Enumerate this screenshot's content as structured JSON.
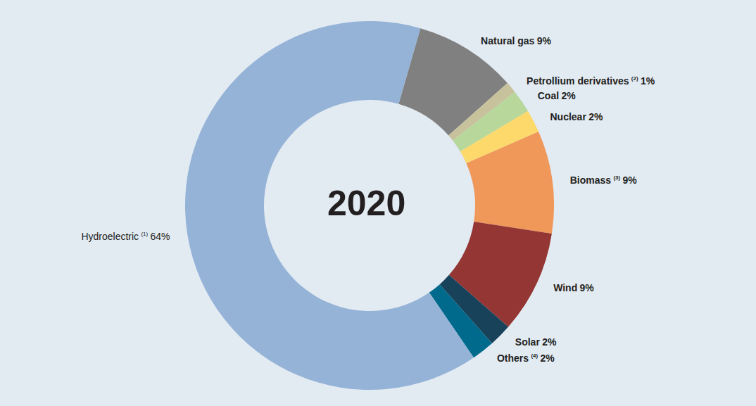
{
  "chart_data": {
    "type": "donut",
    "title": "2020",
    "categories": [
      "Natural gas",
      "Petrollium derivatives",
      "Coal",
      "Nuclear",
      "Biomass",
      "Wind",
      "Solar",
      "Others",
      "Hydroelectric"
    ],
    "footnote_marks": [
      null,
      "(2)",
      null,
      null,
      "(3)",
      null,
      null,
      "(4)",
      "(1)"
    ],
    "values": [
      9,
      1,
      2,
      2,
      9,
      9,
      2,
      2,
      64
    ],
    "value_labels": [
      "9%",
      "1%",
      "2%",
      "2%",
      "9%",
      "9%",
      "2%",
      "2%",
      "64%"
    ],
    "colors": [
      "#808080",
      "#c8c29c",
      "#b7d79b",
      "#fcd96a",
      "#f0975a",
      "#943634",
      "#17425a",
      "#006a8c",
      "#95b3d7"
    ],
    "data_labels": true
  }
}
